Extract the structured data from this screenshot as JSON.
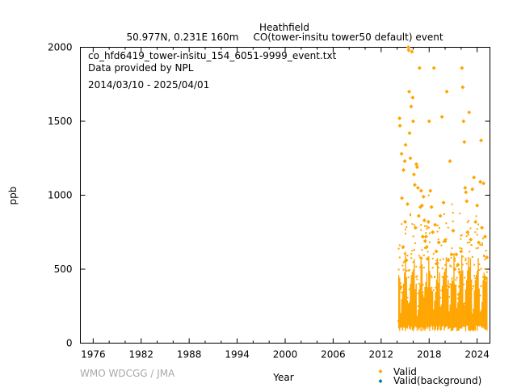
{
  "header": {
    "station": "Heathfield",
    "location": "50.977N, 0.231E 160m",
    "dataset": "CO(tower-insitu tower50 default) event"
  },
  "info": {
    "filename": "co_hfd6419_tower-insitu_154_6051-9999_event.txt",
    "provider": "Data provided by NPL",
    "period": "2014/03/10 - 2025/04/01"
  },
  "watermark": "WMO WDCGG / JMA",
  "colors": {
    "valid": "#ffa500",
    "background": "#008080"
  },
  "chart_data": {
    "type": "scatter",
    "xlabel": "Year",
    "ylabel": "ppb",
    "xlim": [
      1974.4,
      2025.6
    ],
    "ylim": [
      0,
      2000
    ],
    "xticks": [
      1976,
      1982,
      1988,
      1994,
      2000,
      2006,
      2012,
      2018,
      2024
    ],
    "yticks": [
      0,
      500,
      1000,
      1500,
      2000
    ],
    "legend_position": "bottom-right",
    "grid": false,
    "series": [
      {
        "name": "Valid",
        "color": "#ffa500",
        "marker": "diamond",
        "points": [
          [
            2014.25,
            150
          ],
          [
            2014.3,
            1520
          ],
          [
            2014.35,
            1470
          ],
          [
            2014.45,
            380
          ],
          [
            2014.55,
            1280
          ],
          [
            2014.6,
            980
          ],
          [
            2014.75,
            650
          ],
          [
            2014.8,
            1170
          ],
          [
            2014.95,
            1230
          ],
          [
            2015.0,
            820
          ],
          [
            2015.05,
            1340
          ],
          [
            2015.15,
            560
          ],
          [
            2015.3,
            940
          ],
          [
            2015.4,
            2000
          ],
          [
            2015.45,
            1980
          ],
          [
            2015.5,
            1700
          ],
          [
            2015.55,
            1420
          ],
          [
            2015.65,
            1250
          ],
          [
            2015.75,
            1600
          ],
          [
            2015.85,
            1970
          ],
          [
            2015.95,
            1660
          ],
          [
            2016.0,
            1500
          ],
          [
            2016.1,
            1140
          ],
          [
            2016.2,
            1070
          ],
          [
            2016.3,
            780
          ],
          [
            2016.4,
            1210
          ],
          [
            2016.5,
            1190
          ],
          [
            2016.6,
            1050
          ],
          [
            2016.7,
            860
          ],
          [
            2016.8,
            1860
          ],
          [
            2016.9,
            920
          ],
          [
            2017.0,
            1030
          ],
          [
            2017.1,
            930
          ],
          [
            2017.2,
            720
          ],
          [
            2017.3,
            990
          ],
          [
            2017.4,
            830
          ],
          [
            2017.5,
            690
          ],
          [
            2017.6,
            720
          ],
          [
            2017.7,
            650
          ],
          [
            2017.8,
            570
          ],
          [
            2017.9,
            820
          ],
          [
            2018.0,
            1500
          ],
          [
            2018.15,
            1030
          ],
          [
            2018.3,
            920
          ],
          [
            2018.45,
            750
          ],
          [
            2018.6,
            1860
          ],
          [
            2018.75,
            800
          ],
          [
            2018.9,
            620
          ],
          [
            2019.0,
            540
          ],
          [
            2019.2,
            680
          ],
          [
            2019.4,
            860
          ],
          [
            2019.6,
            1530
          ],
          [
            2019.8,
            950
          ],
          [
            2020.0,
            690
          ],
          [
            2020.2,
            1700
          ],
          [
            2020.4,
            560
          ],
          [
            2020.6,
            1230
          ],
          [
            2020.8,
            600
          ],
          [
            2021.0,
            760
          ],
          [
            2021.2,
            500
          ],
          [
            2021.4,
            600
          ],
          [
            2021.6,
            530
          ],
          [
            2021.8,
            480
          ],
          [
            2022.0,
            620
          ],
          [
            2022.1,
            1860
          ],
          [
            2022.2,
            1730
          ],
          [
            2022.3,
            1500
          ],
          [
            2022.4,
            1360
          ],
          [
            2022.5,
            1050
          ],
          [
            2022.6,
            1020
          ],
          [
            2022.7,
            960
          ],
          [
            2022.8,
            750
          ],
          [
            2023.0,
            1560
          ],
          [
            2023.2,
            700
          ],
          [
            2023.4,
            1040
          ],
          [
            2023.6,
            1120
          ],
          [
            2023.8,
            820
          ],
          [
            2024.0,
            930
          ],
          [
            2024.2,
            680
          ],
          [
            2024.4,
            1090
          ],
          [
            2024.5,
            1370
          ],
          [
            2024.6,
            780
          ],
          [
            2024.8,
            1080
          ],
          [
            2025.0,
            720
          ],
          [
            2025.1,
            440
          ],
          [
            2025.2,
            580
          ]
        ]
      },
      {
        "name": "Valid(background)",
        "color": "#008080",
        "marker": "diamond",
        "points": []
      }
    ]
  }
}
